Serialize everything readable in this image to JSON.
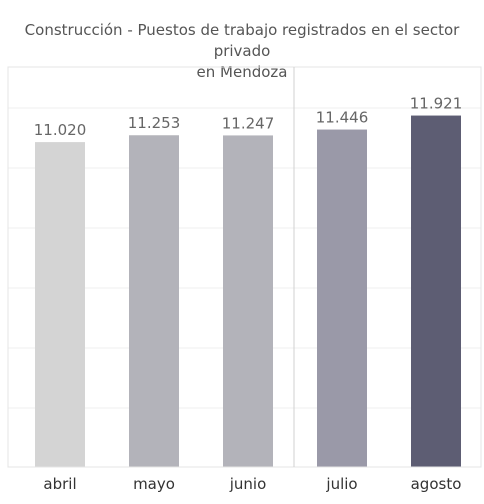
{
  "chart_data": {
    "type": "bar",
    "title": "Construcción - Puestos de trabajo registrados en el sector privado en Mendoza",
    "title_lines": [
      "Construcción - Puestos de trabajo registrados en el sector privado",
      "en Mendoza"
    ],
    "categories": [
      "abril",
      "mayo",
      "junio",
      "julio",
      "agosto"
    ],
    "values": [
      11020,
      11253,
      11247,
      11446,
      11921
    ],
    "value_labels": [
      "11.020",
      "11.253",
      "11.247",
      "11.446",
      "11.921"
    ],
    "colors": [
      "#d4d4d4",
      "#b3b3ba",
      "#b3b3ba",
      "#9a99a8",
      "#5d5d73"
    ],
    "xlabel": "",
    "ylabel": "",
    "ylim": [
      0,
      13500
    ],
    "grid": true,
    "legend": "none"
  }
}
